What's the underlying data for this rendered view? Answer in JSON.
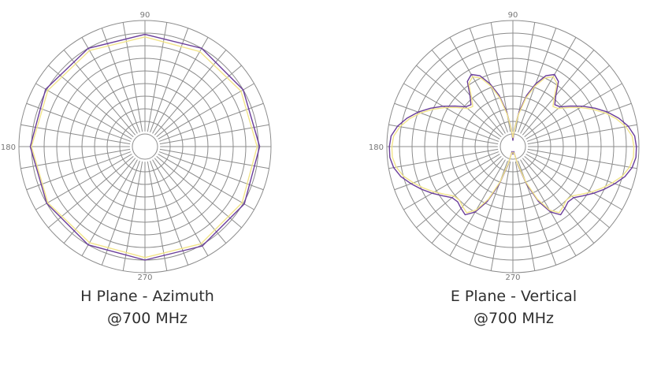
{
  "colors": {
    "background": "#ffffff",
    "grid": "#8c8c8c",
    "tick_text": "#777777",
    "caption_text": "#2f2f2f",
    "trace_purple": "#6a3d9a",
    "trace_yellow": "#f2e48a",
    "trace_blue": "#3b5bdb"
  },
  "chart_data": [
    {
      "type": "polar",
      "title": "",
      "caption_line1": "H Plane - Azimuth",
      "caption_line2": "@700 MHz",
      "tick_labels": {
        "top": "90",
        "left": "180",
        "bottom": "270"
      },
      "rings": 10,
      "spokes_deg": 10,
      "r_range": [
        0,
        1
      ],
      "series": [
        {
          "color_key": "trace_purple",
          "angles_deg": [
            0,
            30,
            60,
            90,
            120,
            150,
            180,
            210,
            240,
            270,
            300,
            330
          ],
          "values": [
            0.91,
            0.9,
            0.9,
            0.89,
            0.9,
            0.91,
            0.91,
            0.9,
            0.9,
            0.9,
            0.91,
            0.91
          ]
        },
        {
          "color_key": "trace_yellow",
          "angles_deg": [
            0,
            30,
            60,
            90,
            120,
            150,
            180,
            210,
            240,
            270,
            300,
            330
          ],
          "values": [
            0.89,
            0.88,
            0.87,
            0.87,
            0.88,
            0.89,
            0.9,
            0.89,
            0.88,
            0.88,
            0.89,
            0.89
          ]
        }
      ]
    },
    {
      "type": "polar",
      "title": "",
      "caption_line1": "E Plane - Vertical",
      "caption_line2": "@700 MHz",
      "tick_labels": {
        "top": "90",
        "left": "180",
        "bottom": "270"
      },
      "rings": 10,
      "spokes_deg": 10,
      "r_range": [
        0,
        1
      ],
      "series": [
        {
          "color_key": "trace_purple",
          "angles_deg": [
            0,
            5,
            10,
            15,
            20,
            25,
            30,
            35,
            40,
            45,
            50,
            55,
            60,
            65,
            70,
            75,
            80,
            85,
            90,
            95,
            100,
            105,
            110,
            115,
            120,
            125,
            130,
            135,
            140,
            145,
            150,
            155,
            160,
            165,
            170,
            175,
            180,
            185,
            190,
            195,
            200,
            205,
            210,
            215,
            220,
            225,
            230,
            235,
            240,
            245,
            250,
            255,
            260,
            265,
            270,
            275,
            280,
            285,
            290,
            295,
            300,
            305,
            310,
            315,
            320,
            325,
            330,
            335,
            340,
            345,
            350,
            355
          ],
          "values": [
            0.98,
            0.97,
            0.93,
            0.87,
            0.8,
            0.72,
            0.64,
            0.56,
            0.49,
            0.47,
            0.53,
            0.63,
            0.66,
            0.62,
            0.53,
            0.42,
            0.28,
            0.14,
            0.05,
            0.14,
            0.28,
            0.42,
            0.53,
            0.62,
            0.66,
            0.63,
            0.53,
            0.47,
            0.49,
            0.56,
            0.64,
            0.72,
            0.8,
            0.87,
            0.93,
            0.97,
            0.98,
            0.98,
            0.96,
            0.92,
            0.86,
            0.8,
            0.74,
            0.68,
            0.63,
            0.62,
            0.64,
            0.66,
            0.6,
            0.48,
            0.32,
            0.15,
            0.04,
            0.05,
            0.06,
            0.05,
            0.04,
            0.15,
            0.32,
            0.48,
            0.6,
            0.66,
            0.64,
            0.62,
            0.63,
            0.68,
            0.74,
            0.8,
            0.86,
            0.92,
            0.96,
            0.98
          ]
        },
        {
          "color_key": "trace_yellow",
          "angles_deg": [
            0,
            5,
            10,
            15,
            20,
            25,
            30,
            35,
            40,
            45,
            50,
            55,
            60,
            65,
            70,
            75,
            80,
            85,
            90,
            95,
            100,
            105,
            110,
            115,
            120,
            125,
            130,
            135,
            140,
            145,
            150,
            155,
            160,
            165,
            170,
            175,
            180,
            185,
            190,
            195,
            200,
            205,
            210,
            215,
            220,
            225,
            230,
            235,
            240,
            245,
            250,
            255,
            260,
            265,
            270,
            275,
            280,
            285,
            290,
            295,
            300,
            305,
            310,
            315,
            320,
            325,
            330,
            335,
            340,
            345,
            350,
            355
          ],
          "values": [
            0.96,
            0.95,
            0.91,
            0.85,
            0.78,
            0.7,
            0.62,
            0.54,
            0.47,
            0.45,
            0.51,
            0.61,
            0.64,
            0.6,
            0.51,
            0.4,
            0.26,
            0.14,
            0.07,
            0.14,
            0.26,
            0.4,
            0.51,
            0.6,
            0.64,
            0.61,
            0.51,
            0.45,
            0.47,
            0.54,
            0.62,
            0.7,
            0.78,
            0.85,
            0.91,
            0.95,
            0.96,
            0.96,
            0.94,
            0.9,
            0.84,
            0.78,
            0.72,
            0.66,
            0.61,
            0.6,
            0.62,
            0.64,
            0.58,
            0.46,
            0.3,
            0.14,
            0.05,
            0.05,
            0.05,
            0.05,
            0.05,
            0.14,
            0.3,
            0.46,
            0.58,
            0.64,
            0.62,
            0.6,
            0.61,
            0.66,
            0.72,
            0.78,
            0.84,
            0.9,
            0.94,
            0.96
          ]
        }
      ]
    }
  ]
}
